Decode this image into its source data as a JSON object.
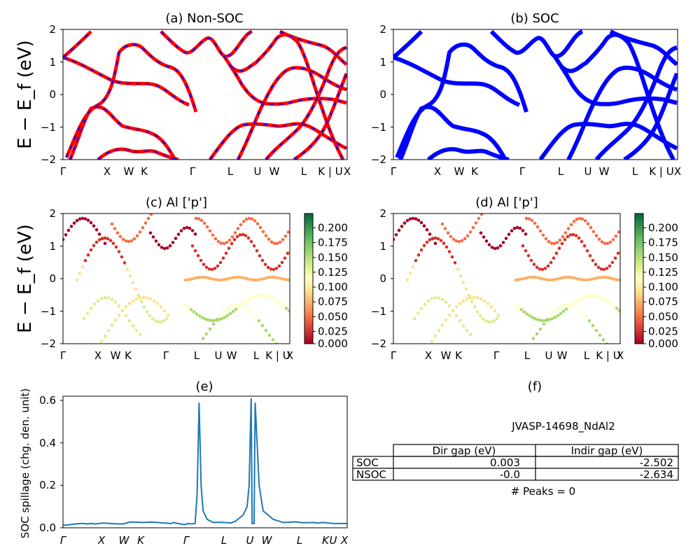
{
  "panels": {
    "a": {
      "title": "(a) Non-SOC",
      "ylabel": "E − E_f (eV)",
      "ylim": [
        -2,
        2
      ],
      "y_ticks": [
        "2",
        "1",
        "0",
        "−1",
        "−2"
      ],
      "k_labels": [
        "Γ",
        "X",
        "W",
        "K",
        "Γ",
        "L",
        "U",
        "W",
        "L",
        "K | U",
        "X"
      ],
      "line_colors": [
        "#ff0000",
        "#0000ff"
      ]
    },
    "b": {
      "title": "(b) SOC",
      "ylim": [
        -2,
        2
      ],
      "y_ticks": [
        "2",
        "1",
        "0",
        "−1",
        "−2"
      ],
      "k_labels": [
        "Γ",
        "X",
        "W",
        "K",
        "Γ",
        "L",
        "U",
        "W",
        "L",
        "K | U",
        "X"
      ],
      "line_color": "#0000ff"
    },
    "c": {
      "title": "(c)  Al ['p']",
      "ylabel": "E − E_f (eV)",
      "ylim": [
        -2,
        2
      ],
      "y_ticks": [
        "2",
        "1",
        "0",
        "−1",
        "−2"
      ],
      "k_labels": [
        "Γ",
        "X",
        "W",
        "K",
        "Γ",
        "L",
        "U",
        "W",
        "L",
        "K | U",
        "X"
      ],
      "colorbar_ticks": [
        "0.200",
        "0.175",
        "0.150",
        "0.125",
        "0.100",
        "0.075",
        "0.050",
        "0.025",
        "0.000"
      ],
      "colorbar_range": [
        0,
        0.22
      ]
    },
    "d": {
      "title": "(d) Al ['p']",
      "ylim": [
        -2,
        2
      ],
      "y_ticks": [
        "2",
        "1",
        "0",
        "−1",
        "−2"
      ],
      "k_labels": [
        "Γ",
        "X",
        "W",
        "K",
        "Γ",
        "L",
        "U",
        "W",
        "L",
        "K | U",
        "X"
      ],
      "colorbar_ticks": [
        "0.200",
        "0.175",
        "0.150",
        "0.125",
        "0.100",
        "0.075",
        "0.050",
        "0.025",
        "0.000"
      ],
      "colorbar_range": [
        0,
        0.22
      ]
    },
    "e": {
      "title": "(e)",
      "ylabel": "SOC spillage (chg. den. unit)",
      "ylim": [
        0,
        0.62
      ],
      "y_ticks": [
        "0.6",
        "0.4",
        "0.2",
        "0.0"
      ],
      "k_labels": [
        "Γ",
        "X",
        "W",
        "K",
        "Γ",
        "L",
        "U",
        "W",
        "L",
        "K",
        "U",
        "X"
      ],
      "line_color": "#1f77b4"
    },
    "f": {
      "title": "(f)",
      "subtitle": "JVASP-14698_NdAl2",
      "table": {
        "headers": [
          "",
          "Dir gap (eV)",
          "Indir gap (eV)"
        ],
        "rows": [
          [
            "SOC",
            "0.003",
            "-2.502"
          ],
          [
            "NSOC",
            "-0.0",
            "-2.634"
          ]
        ]
      },
      "footer": "# Peaks = 0"
    }
  },
  "chart_data": [
    {
      "type": "line",
      "title": "(a) Non-SOC",
      "ylabel": "E − E_f (eV)",
      "ylim": [
        -2,
        2
      ],
      "x_ticks": [
        "Γ",
        "X",
        "W",
        "K",
        "Γ",
        "L",
        "U",
        "W",
        "L",
        "K | U",
        "X"
      ],
      "note": "band structure, overlapping red and blue dashed bands"
    },
    {
      "type": "line",
      "title": "(b) SOC",
      "ylim": [
        -2,
        2
      ],
      "x_ticks": [
        "Γ",
        "X",
        "W",
        "K",
        "Γ",
        "L",
        "U",
        "W",
        "L",
        "K | U",
        "X"
      ]
    },
    {
      "type": "scatter",
      "title": "(c)  Al ['p']",
      "ylim": [
        -2,
        2
      ],
      "colorbar": [
        0,
        0.22
      ]
    },
    {
      "type": "scatter",
      "title": "(d) Al ['p']",
      "ylim": [
        -2,
        2
      ],
      "colorbar": [
        0,
        0.22
      ]
    },
    {
      "type": "line",
      "title": "(e)",
      "ylabel": "SOC spillage (chg. den. unit)",
      "ylim": [
        0,
        0.62
      ],
      "x": [
        0,
        0.03,
        0.06,
        0.09,
        0.105,
        0.12,
        0.14,
        0.16,
        0.2,
        0.24,
        0.26,
        0.285,
        0.3,
        0.33,
        0.35,
        0.4,
        0.44,
        0.54,
        0.555,
        0.575,
        0.6,
        0.615,
        0.625,
        0.64,
        0.66,
        0.67,
        0.68,
        0.69,
        0.7,
        0.72,
        0.75,
        0.77,
        0.8,
        0.84,
        0.86,
        0.88,
        0.9,
        0.92,
        0.93,
        0.94,
        0.945,
        0.955,
        0.96,
        0.98,
        1.0,
        1.05,
        1.1,
        1.16,
        1.2,
        1.25,
        1.27,
        1.3,
        1.35,
        1.4,
        1.42
      ],
      "y": [
        0.012,
        0.014,
        0.018,
        0.02,
        0.02,
        0.018,
        0.02,
        0.018,
        0.022,
        0.02,
        0.019,
        0.018,
        0.018,
        0.026,
        0.027,
        0.025,
        0.027,
        0.02,
        0.025,
        0.02,
        0.016,
        0.016,
        0.02,
        0.018,
        0.02,
        0.16,
        0.59,
        0.2,
        0.08,
        0.04,
        0.025,
        0.026,
        0.025,
        0.023,
        0.03,
        0.045,
        0.06,
        0.1,
        0.2,
        0.61,
        0.02,
        0.02,
        0.59,
        0.2,
        0.08,
        0.04,
        0.025,
        0.028,
        0.024,
        0.025,
        0.022,
        0.025,
        0.02,
        0.02,
        0.02
      ],
      "x_ticks": [
        "Γ",
        "X",
        "W",
        "K",
        "Γ",
        "L",
        "U",
        "W",
        "L",
        "K",
        "U",
        "X"
      ]
    }
  ]
}
